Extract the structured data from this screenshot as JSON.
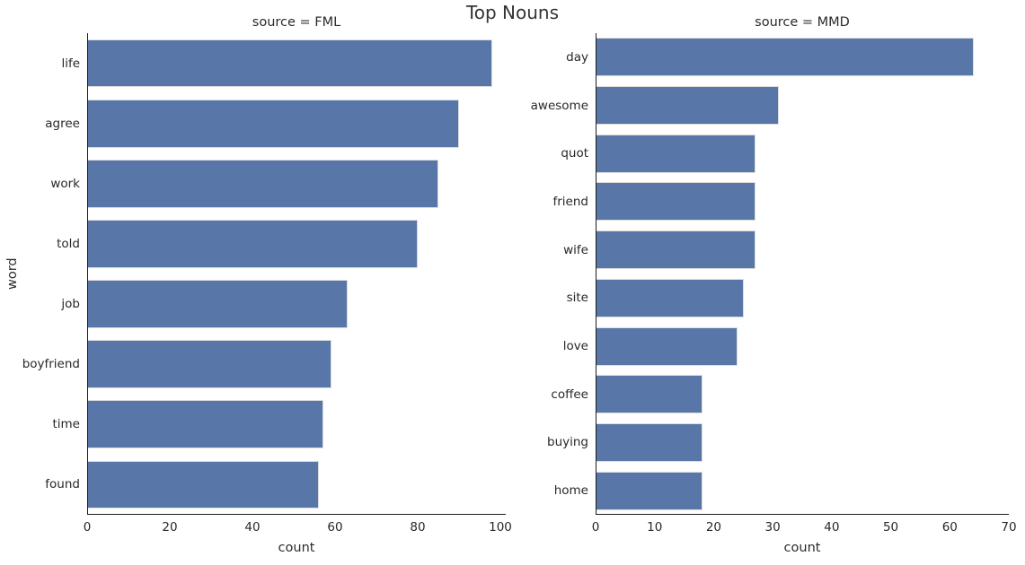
{
  "figure": {
    "title": "Top Nouns",
    "background": "#ffffff",
    "bar_color": "#5876a8",
    "bar_edge_color": "#dedede",
    "spine_color": "#1c1c1c",
    "text_color": "#2b2b2b"
  },
  "chart_data": [
    {
      "type": "bar",
      "orientation": "horizontal",
      "facet_title": "source = FML",
      "categories": [
        "life",
        "agree",
        "work",
        "told",
        "job",
        "boyfriend",
        "time",
        "found"
      ],
      "values": [
        98,
        90,
        85,
        80,
        63,
        59,
        57,
        56
      ],
      "xlabel": "count",
      "ylabel": "word",
      "xlim": [
        0,
        101.3
      ],
      "xticks": [
        0,
        20,
        40,
        60,
        80,
        100
      ],
      "grid": false,
      "legend": false
    },
    {
      "type": "bar",
      "orientation": "horizontal",
      "facet_title": "source = MMD",
      "categories": [
        "day",
        "awesome",
        "quot",
        "friend",
        "wife",
        "site",
        "love",
        "coffee",
        "buying",
        "home"
      ],
      "values": [
        64,
        31,
        27,
        27,
        27,
        25,
        24,
        18,
        18,
        18
      ],
      "xlabel": "count",
      "ylabel": "",
      "xlim": [
        0,
        70
      ],
      "xticks": [
        0,
        10,
        20,
        30,
        40,
        50,
        60,
        70
      ],
      "grid": false,
      "legend": false
    }
  ]
}
